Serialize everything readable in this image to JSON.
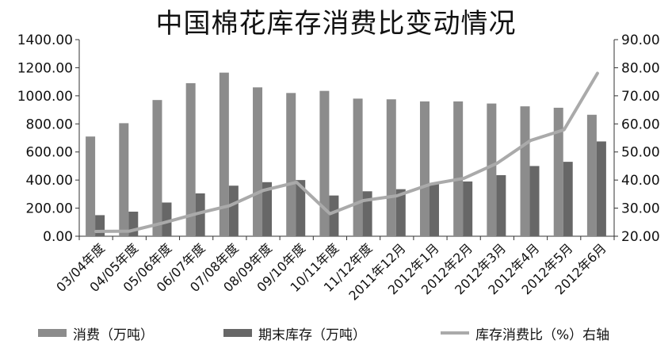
{
  "chart_data": {
    "type": "bar",
    "title": "中国棉花库存消费比变动情况",
    "categories": [
      "03/04年度",
      "04/05年度",
      "05/06年度",
      "06/07年度",
      "07/08年度",
      "08/09年度",
      "09/10年度",
      "10/11年度",
      "11/12年度",
      "2011年12月",
      "2012年1月",
      "2012年2月",
      "2012年3月",
      "2012年4月",
      "2012年5月",
      "2012年6月"
    ],
    "series": [
      {
        "name": "消费（万吨）",
        "type": "bar",
        "axis": "left",
        "color": "#8c8c8c",
        "values": [
          710,
          805,
          970,
          1090,
          1165,
          1060,
          1020,
          1035,
          980,
          975,
          960,
          960,
          945,
          925,
          915,
          865
        ]
      },
      {
        "name": "期末库存（万吨）",
        "type": "bar",
        "axis": "left",
        "color": "#676767",
        "values": [
          150,
          175,
          240,
          305,
          360,
          385,
          400,
          290,
          320,
          335,
          370,
          390,
          435,
          500,
          530,
          675
        ]
      },
      {
        "name": "库存消费比（%）右轴",
        "type": "line",
        "axis": "right",
        "color": "#aaaaaa",
        "values": [
          21.7,
          21.8,
          24.7,
          28.0,
          30.9,
          36.3,
          39.2,
          28.0,
          32.7,
          34.4,
          38.5,
          40.6,
          46.0,
          54.1,
          57.9,
          78.0
        ]
      }
    ],
    "y_left": {
      "min": 0,
      "max": 1400,
      "step": 200,
      "tick_labels": [
        "0.00",
        "200.00",
        "400.00",
        "600.00",
        "800.00",
        "1000.00",
        "1200.00",
        "1400.00"
      ]
    },
    "y_right": {
      "min": 20,
      "max": 90,
      "step": 10,
      "tick_labels": [
        "20.00",
        "30.00",
        "40.00",
        "50.00",
        "60.00",
        "70.00",
        "80.00",
        "90.00"
      ]
    },
    "grid": false,
    "legend": "bottom"
  }
}
